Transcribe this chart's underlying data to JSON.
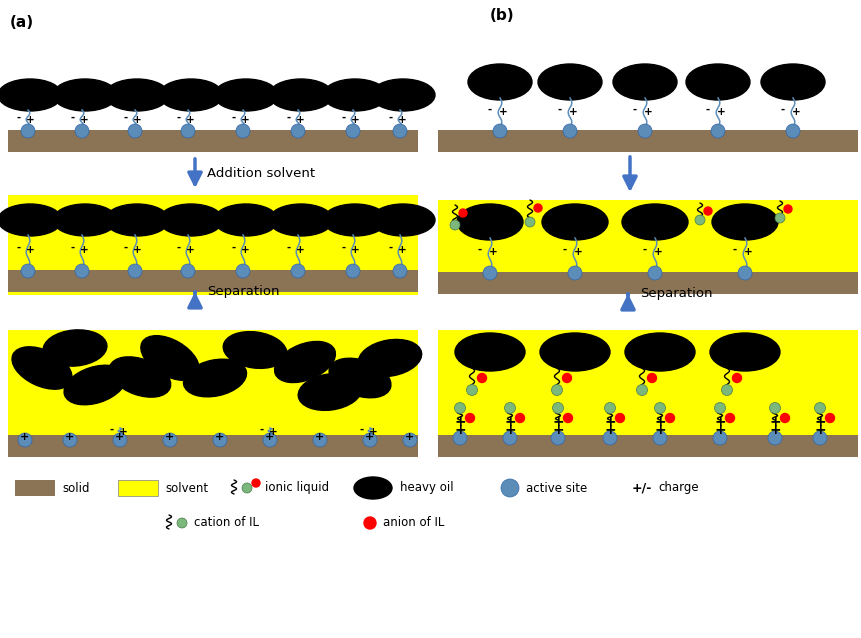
{
  "bg_color": "#ffffff",
  "solid_color": "#8B7355",
  "solvent_color": "#FFFF00",
  "oil_color": "#000000",
  "active_site_color": "#5B8DB8",
  "cation_color": "#7CB87C",
  "anion_color": "#FF0000",
  "arrow_color": "#4472C4",
  "panel_a_label": "(a)",
  "panel_b_label": "(b)",
  "arrow1_text": "Addition solvent",
  "arrow2a_text": "Separation",
  "arrow2b_text": "Separation"
}
